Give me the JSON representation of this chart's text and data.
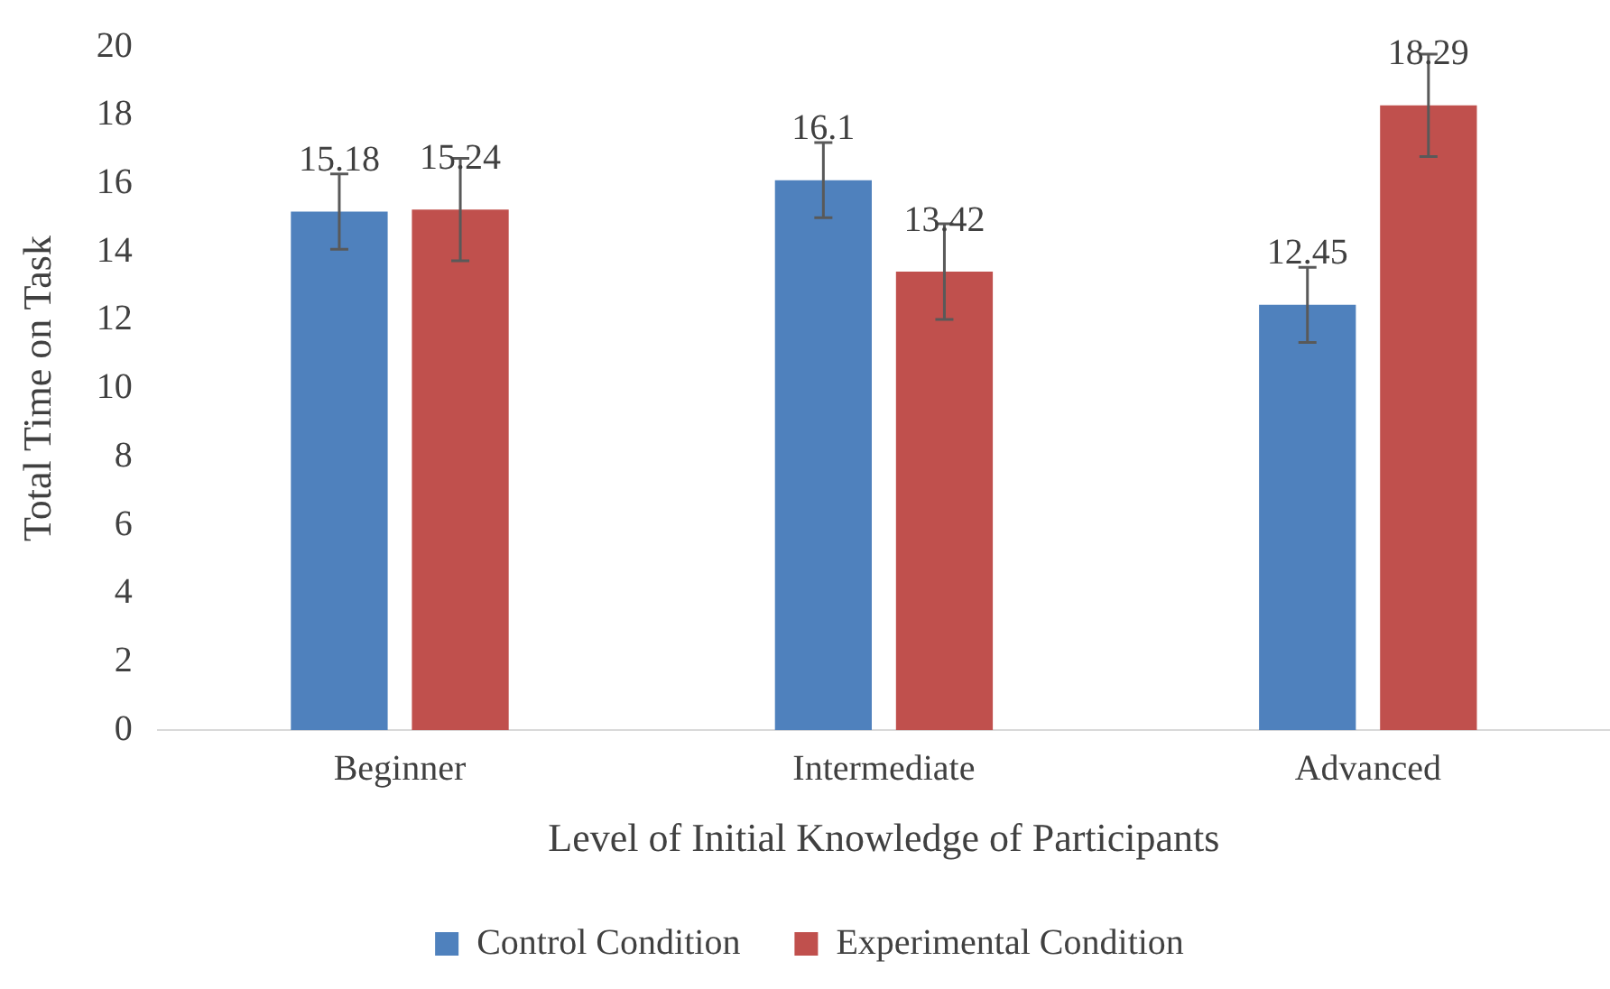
{
  "chart_data": {
    "type": "bar",
    "xlabel": "Level of Initial Knowledge of Participants",
    "ylabel": "Total Time on Task",
    "categories": [
      "Beginner",
      "Intermediate",
      "Advanced"
    ],
    "series": [
      {
        "name": "Control Condition",
        "color": "#4f81bd",
        "values": [
          15.18,
          16.1,
          12.45
        ],
        "errors": [
          1.1,
          1.1,
          1.1
        ]
      },
      {
        "name": "Experimental Condition",
        "color": "#c0504d",
        "values": [
          15.24,
          13.42,
          18.29
        ],
        "errors": [
          1.5,
          1.4,
          1.5
        ]
      }
    ],
    "ylim": [
      0,
      20
    ],
    "yticks": [
      0,
      2,
      4,
      6,
      8,
      10,
      12,
      14,
      16,
      18,
      20
    ],
    "grid": false,
    "legend": "bottom",
    "data_labels": true
  }
}
